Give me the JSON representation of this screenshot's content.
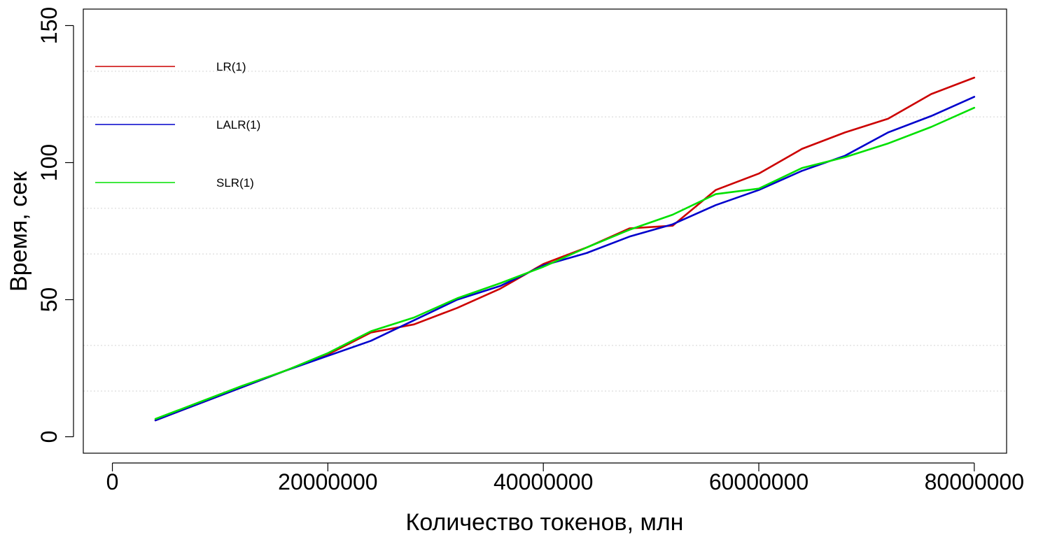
{
  "chart_data": {
    "type": "line",
    "xlabel": "Количество токенов, млн",
    "ylabel": "Время, сек",
    "xlim": [
      -2700000,
      83000000
    ],
    "ylim": [
      -6,
      156
    ],
    "x_ticks": [
      0,
      20000000,
      40000000,
      60000000,
      80000000
    ],
    "x_tick_labels": [
      "0",
      "20000000",
      "40000000",
      "60000000",
      "80000000"
    ],
    "y_ticks": [
      0,
      50,
      100,
      150
    ],
    "y_tick_labels": [
      "0",
      "50",
      "100",
      "150"
    ],
    "grid": true,
    "legend_position": "top-left",
    "x": [
      4000000,
      8000000,
      12000000,
      16000000,
      20000000,
      24000000,
      28000000,
      32000000,
      36000000,
      40000000,
      44000000,
      48000000,
      52000000,
      56000000,
      60000000,
      64000000,
      68000000,
      72000000,
      76000000,
      80000000
    ],
    "series": [
      {
        "name": "LR(1)",
        "color": "#cc0000",
        "values": [
          6,
          12,
          18,
          24,
          30,
          38,
          41,
          47,
          54,
          63,
          69,
          76,
          77,
          90,
          96,
          105,
          111,
          116,
          125,
          131
        ]
      },
      {
        "name": "LALR(1)",
        "color": "#0000cc",
        "values": [
          6,
          12,
          18,
          24,
          29.5,
          35,
          42.5,
          50,
          55,
          62.5,
          67,
          73,
          77.5,
          84.5,
          90,
          97,
          102.5,
          111,
          117,
          124
        ]
      },
      {
        "name": "SLR(1)",
        "color": "#00e000",
        "values": [
          6.5,
          12.5,
          18.5,
          24,
          30.5,
          38.5,
          43.5,
          50.5,
          56,
          62,
          69,
          75.5,
          81,
          88.5,
          90.5,
          98,
          102,
          107,
          113,
          120
        ]
      }
    ]
  }
}
